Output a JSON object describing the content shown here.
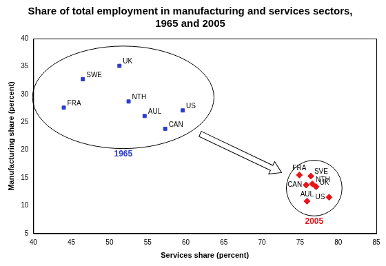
{
  "chart_data": {
    "type": "scatter",
    "title": [
      "Share of total employment in manufacturing and services sectors,",
      "1965 and 2005"
    ],
    "x_label": "Services share (percent)",
    "y_label": "Manufacturing share (percent)",
    "xlim": [
      40,
      85
    ],
    "xticks": [
      40,
      45,
      50,
      55,
      60,
      65,
      70,
      75,
      80,
      85
    ],
    "ylim": [
      5,
      40
    ],
    "yticks": [
      5,
      10,
      15,
      20,
      25,
      30,
      35,
      40
    ],
    "grid": false,
    "series": [
      {
        "name": "1965",
        "color": "#2e3ccc",
        "marker": "square",
        "labels": [
          "UK",
          "SWE",
          "FRA",
          "NTH",
          "AUL",
          "US",
          "CAN"
        ],
        "x": [
          51.3,
          46.5,
          44.0,
          52.5,
          54.6,
          59.6,
          57.3
        ],
        "values": [
          35.1,
          32.7,
          27.6,
          28.7,
          26.1,
          27.1,
          23.8
        ]
      },
      {
        "name": "2005",
        "color": "#e8141a",
        "marker": "diamond",
        "labels": [
          "FRA",
          "SVE",
          "NTH",
          "CAN",
          "UK",
          "AUL",
          "US"
        ],
        "x": [
          74.9,
          76.4,
          76.6,
          75.8,
          77.1,
          75.9,
          78.8
        ],
        "values": [
          15.5,
          15.3,
          13.9,
          13.7,
          13.4,
          10.8,
          11.5
        ]
      }
    ]
  }
}
